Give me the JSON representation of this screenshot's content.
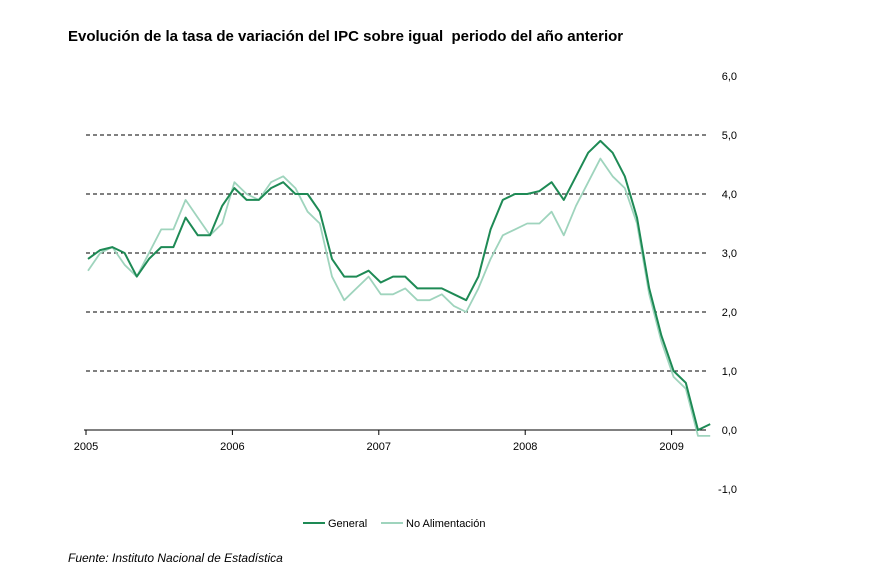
{
  "title": "Evolución de la tasa de variación del IPC sobre igual  periodo del año anterior",
  "source": "Fuente: Instituto Nacional de Estadística",
  "chart_data": {
    "type": "line",
    "title": "Evolución de la tasa de variación del IPC sobre igual  periodo del año anterior",
    "xlabel": "",
    "ylabel": "",
    "ylim": [
      -1.0,
      6.0
    ],
    "yticks": [
      "-1,0",
      "0,0",
      "1,0",
      "2,0",
      "3,0",
      "4,0",
      "5,0",
      "6,0"
    ],
    "ytick_values": [
      -1,
      0,
      1,
      2,
      3,
      4,
      5,
      6
    ],
    "xticks": [
      "2005",
      "2006",
      "2007",
      "2008",
      "2009"
    ],
    "grid": "horizontal dashed",
    "legend_position": "bottom",
    "x": [
      "2005-01",
      "2005-02",
      "2005-03",
      "2005-04",
      "2005-05",
      "2005-06",
      "2005-07",
      "2005-08",
      "2005-09",
      "2005-10",
      "2005-11",
      "2005-12",
      "2006-01",
      "2006-02",
      "2006-03",
      "2006-04",
      "2006-05",
      "2006-06",
      "2006-07",
      "2006-08",
      "2006-09",
      "2006-10",
      "2006-11",
      "2006-12",
      "2007-01",
      "2007-02",
      "2007-03",
      "2007-04",
      "2007-05",
      "2007-06",
      "2007-07",
      "2007-08",
      "2007-09",
      "2007-10",
      "2007-11",
      "2007-12",
      "2008-01",
      "2008-02",
      "2008-03",
      "2008-04",
      "2008-05",
      "2008-06",
      "2008-07",
      "2008-08",
      "2008-09",
      "2008-10",
      "2008-11",
      "2008-12",
      "2009-01",
      "2009-02",
      "2009-03",
      "2009-04"
    ],
    "series": [
      {
        "name": "General",
        "color": "#1e8a55",
        "values": [
          2.9,
          3.05,
          3.1,
          3.0,
          2.6,
          2.9,
          3.1,
          3.1,
          3.6,
          3.3,
          3.3,
          3.8,
          4.1,
          3.9,
          3.9,
          4.1,
          4.2,
          4.0,
          4.0,
          3.7,
          2.9,
          2.6,
          2.6,
          2.7,
          2.5,
          2.6,
          2.6,
          2.4,
          2.4,
          2.4,
          2.3,
          2.2,
          2.6,
          3.4,
          3.9,
          4.0,
          4.0,
          4.05,
          4.2,
          3.9,
          4.3,
          4.7,
          4.9,
          4.7,
          4.3,
          3.6,
          2.4,
          1.6,
          1.0,
          0.8,
          0.0,
          0.1
        ]
      },
      {
        "name": "No Alimentación",
        "color": "#9fd4bd",
        "values": [
          2.7,
          3.0,
          3.1,
          2.8,
          2.6,
          3.0,
          3.4,
          3.4,
          3.9,
          3.6,
          3.3,
          3.5,
          4.2,
          4.0,
          3.9,
          4.2,
          4.3,
          4.1,
          3.7,
          3.5,
          2.6,
          2.2,
          2.4,
          2.6,
          2.3,
          2.3,
          2.4,
          2.2,
          2.2,
          2.3,
          2.1,
          2.0,
          2.4,
          2.9,
          3.3,
          3.4,
          3.5,
          3.5,
          3.7,
          3.3,
          3.8,
          4.2,
          4.6,
          4.3,
          4.1,
          3.5,
          2.3,
          1.5,
          0.9,
          0.7,
          -0.1,
          -0.1
        ]
      }
    ]
  }
}
